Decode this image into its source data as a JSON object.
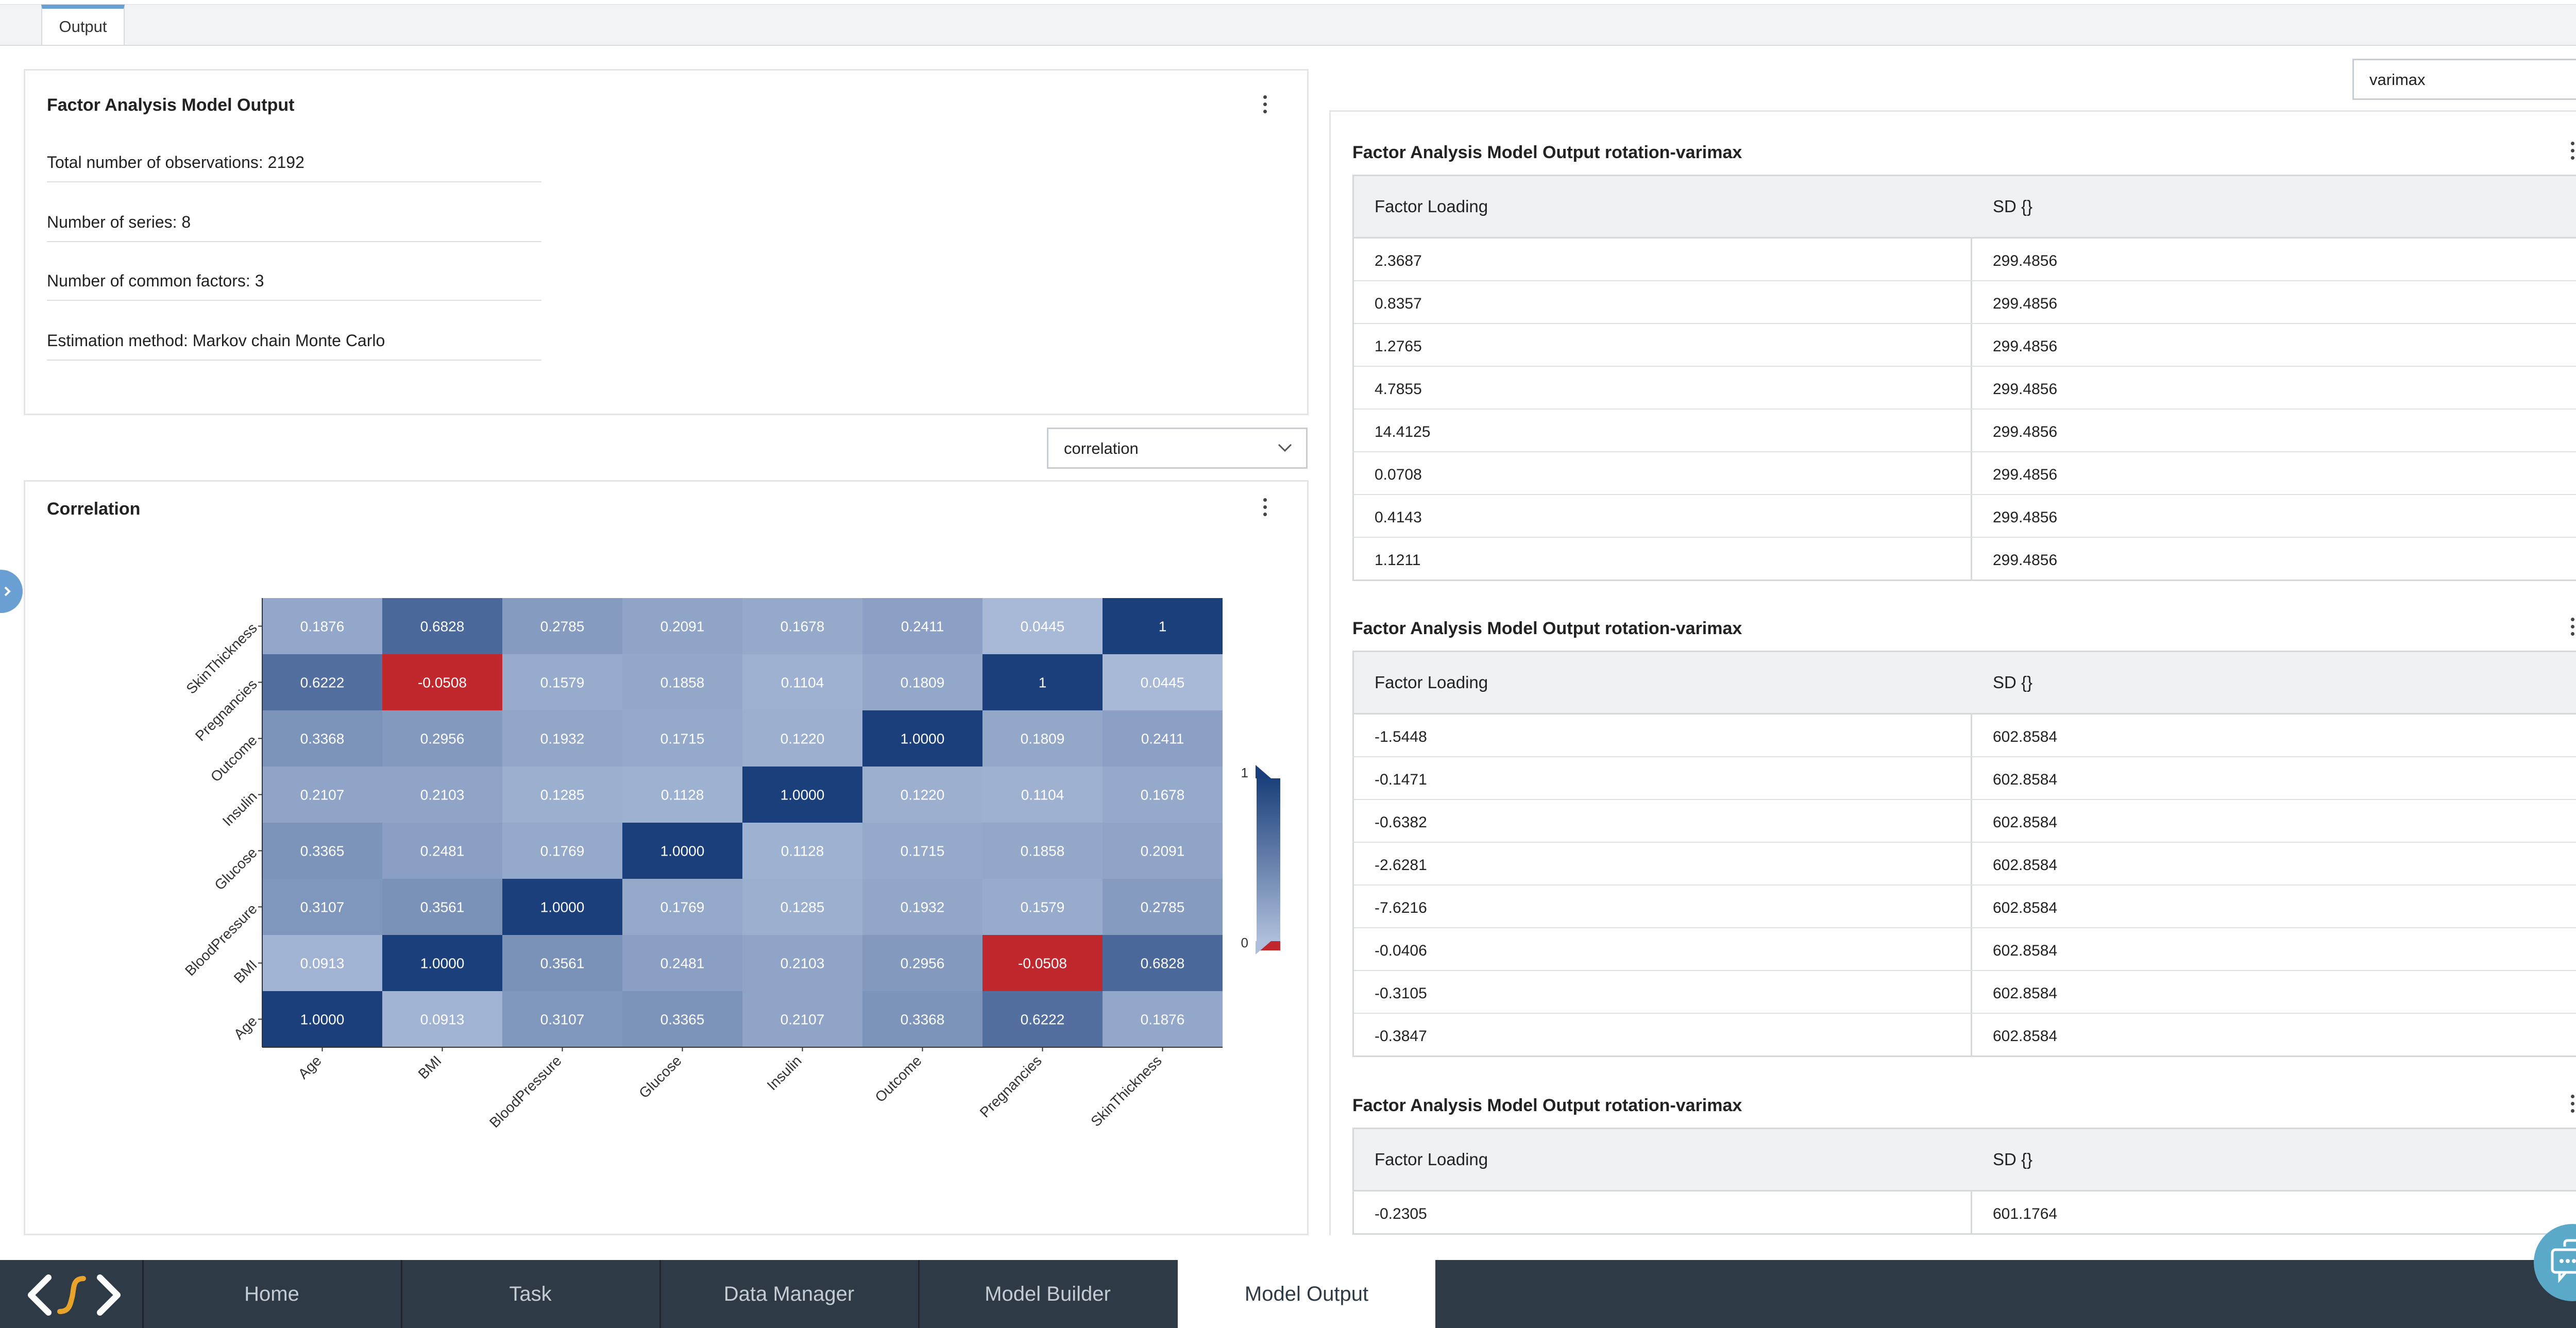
{
  "top_tabs": {
    "output": "Output"
  },
  "summary": {
    "title": "Factor Analysis Model Output",
    "total_observations": "Total number of observations: 2192",
    "num_series": "Number of series: 8",
    "num_factors": "Number of common factors: 3",
    "estimation_method": "Estimation method: Markov chain Monte Carlo"
  },
  "correlation_select": {
    "value": "correlation"
  },
  "rotation_select": {
    "value": "varimax"
  },
  "correlation": {
    "title": "Correlation",
    "legend": {
      "max_label": "1",
      "min_label": "0"
    }
  },
  "chart_data": {
    "type": "heatmap",
    "title": "Correlation",
    "x": [
      "Age",
      "BMI",
      "BloodPressure",
      "Glucose",
      "Insulin",
      "Outcome",
      "Pregnancies",
      "SkinThickness"
    ],
    "y": [
      "Age",
      "BMI",
      "BloodPressure",
      "Glucose",
      "Insulin",
      "Outcome",
      "Pregnancies",
      "SkinThickness"
    ],
    "rows_top_to_bottom": [
      "SkinThickness",
      "Pregnancies",
      "Outcome",
      "Insulin",
      "Glucose",
      "BloodPressure",
      "BMI",
      "Age"
    ],
    "cell_labels": [
      [
        "0.1876",
        "0.6828",
        "0.2785",
        "0.2091",
        "0.1678",
        "0.2411",
        "0.0445",
        "1"
      ],
      [
        "0.6222",
        "-0.0508",
        "0.1579",
        "0.1858",
        "0.1104",
        "0.1809",
        "1",
        "0.0445"
      ],
      [
        "0.3368",
        "0.2956",
        "0.1932",
        "0.1715",
        "0.1220",
        "1.0000",
        "0.1809",
        "0.2411"
      ],
      [
        "0.2107",
        "0.2103",
        "0.1285",
        "0.1128",
        "1.0000",
        "0.1220",
        "0.1104",
        "0.1678"
      ],
      [
        "0.3365",
        "0.2481",
        "0.1769",
        "1.0000",
        "0.1128",
        "0.1715",
        "0.1858",
        "0.2091"
      ],
      [
        "0.3107",
        "0.3561",
        "1.0000",
        "0.1769",
        "0.1285",
        "0.1932",
        "0.1579",
        "0.2785"
      ],
      [
        "0.0913",
        "1.0000",
        "0.3561",
        "0.2481",
        "0.2103",
        "0.2956",
        "-0.0508",
        "0.6828"
      ],
      [
        "1.0000",
        "0.0913",
        "0.3107",
        "0.3365",
        "0.2107",
        "0.3368",
        "0.6222",
        "0.1876"
      ]
    ],
    "value_range": [
      0,
      1
    ],
    "colors": {
      "high": "#1b3f7a",
      "low": "#aebfdb",
      "negative": "#c0282d"
    }
  },
  "tables": [
    {
      "title": "Factor Analysis Model Output rotation-varimax",
      "headers": [
        "Factor Loading",
        "SD {}"
      ],
      "rows": [
        [
          "2.3687",
          "299.4856"
        ],
        [
          "0.8357",
          "299.4856"
        ],
        [
          "1.2765",
          "299.4856"
        ],
        [
          "4.7855",
          "299.4856"
        ],
        [
          "14.4125",
          "299.4856"
        ],
        [
          "0.0708",
          "299.4856"
        ],
        [
          "0.4143",
          "299.4856"
        ],
        [
          "1.1211",
          "299.4856"
        ]
      ]
    },
    {
      "title": "Factor Analysis Model Output rotation-varimax",
      "headers": [
        "Factor Loading",
        "SD {}"
      ],
      "rows": [
        [
          "-1.5448",
          "602.8584"
        ],
        [
          "-0.1471",
          "602.8584"
        ],
        [
          "-0.6382",
          "602.8584"
        ],
        [
          "-2.6281",
          "602.8584"
        ],
        [
          "-7.6216",
          "602.8584"
        ],
        [
          "-0.0406",
          "602.8584"
        ],
        [
          "-0.3105",
          "602.8584"
        ],
        [
          "-0.3847",
          "602.8584"
        ]
      ]
    },
    {
      "title": "Factor Analysis Model Output rotation-varimax",
      "headers": [
        "Factor Loading",
        "SD {}"
      ],
      "rows": [
        [
          "-0.2305",
          "601.1764"
        ]
      ]
    }
  ],
  "bottom_nav": {
    "items": [
      "Home",
      "Task",
      "Data Manager",
      "Model Builder",
      "Model Output"
    ],
    "active": "Model Output"
  },
  "icons": {
    "logo": "code-logo-icon",
    "chat": "chat-support-icon",
    "sidebar": "chevron-right-icon"
  }
}
